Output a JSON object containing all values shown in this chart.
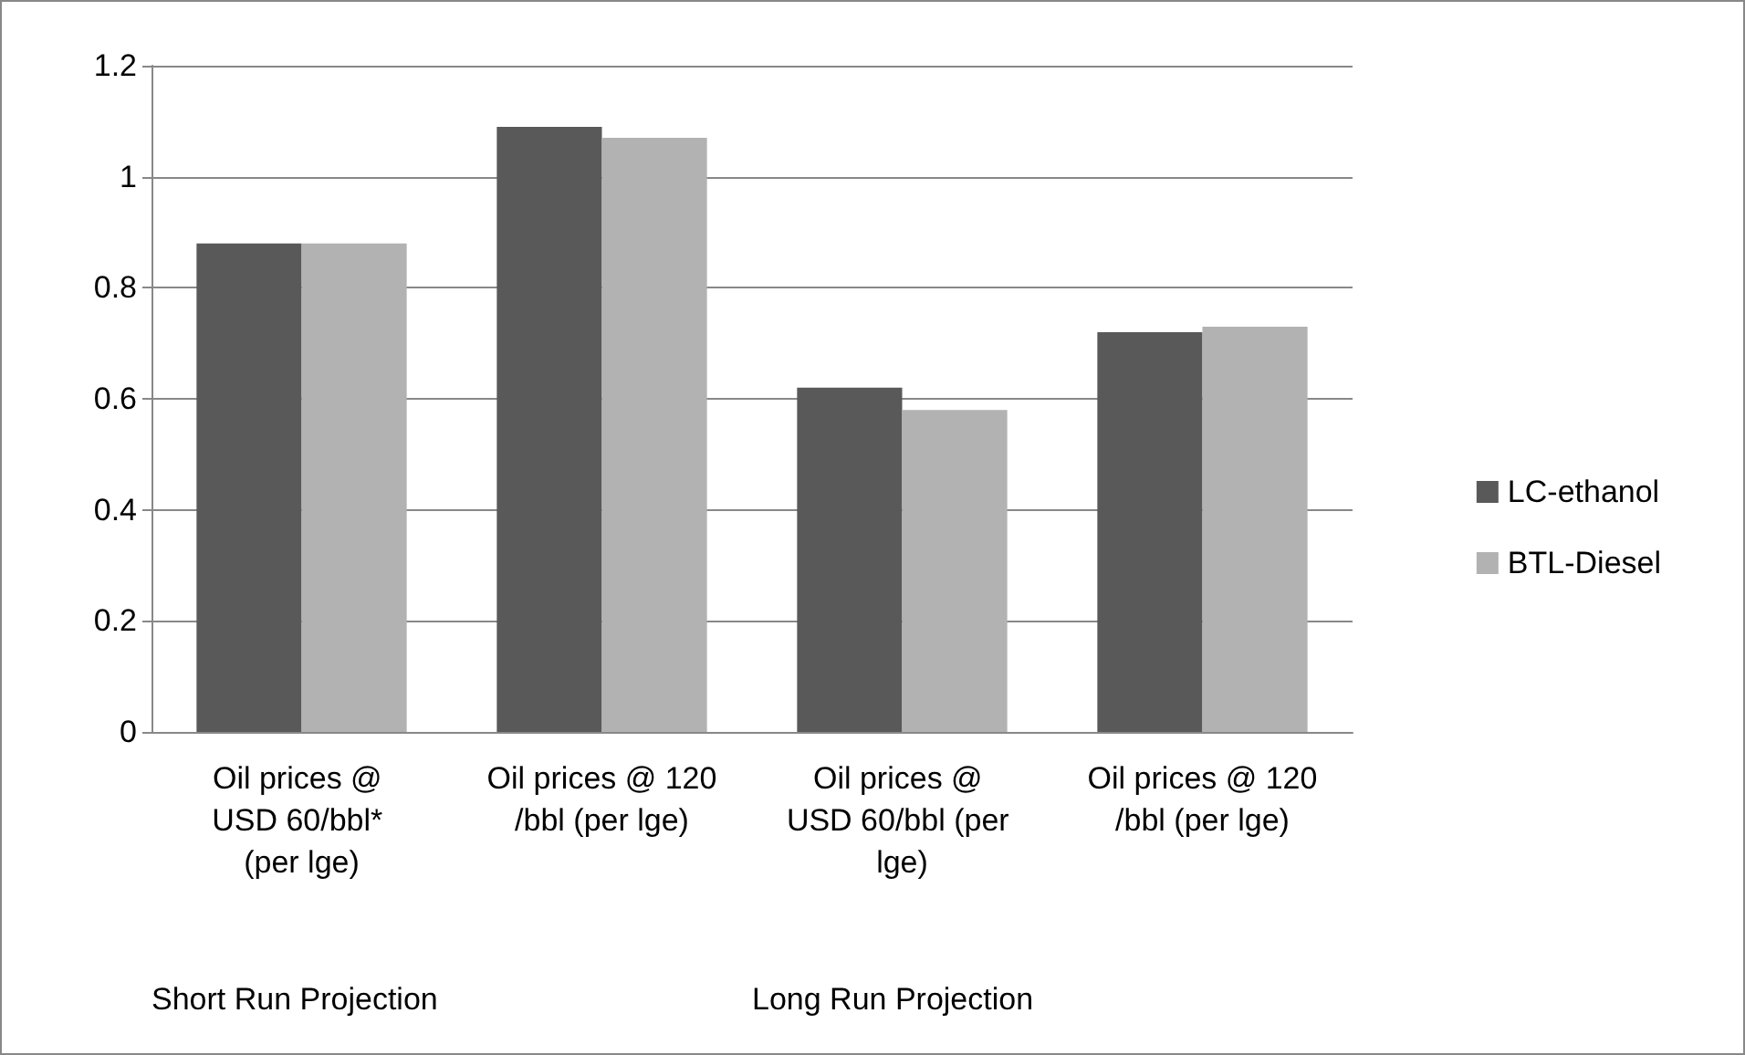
{
  "chart_data": {
    "type": "bar",
    "categories": [
      "Oil prices @ USD 60/bbl* (per lge)",
      "Oil prices @ 120/bbl (per lge)",
      "Oil prices @ USD 60/bbl (per lge)",
      "Oil prices @ 120/bbl (per lge)"
    ],
    "series": [
      {
        "name": "LC-ethanol",
        "color": "#595959",
        "values": [
          0.88,
          1.09,
          0.62,
          0.72
        ]
      },
      {
        "name": "BTL-Diesel",
        "color": "#b2b2b2",
        "values": [
          0.88,
          1.07,
          0.58,
          0.73
        ]
      }
    ],
    "annotations": [
      "Short Run Projection",
      "Long Run Projection"
    ],
    "ylim": [
      0,
      1.2
    ],
    "yticks": [
      0,
      0.2,
      0.4,
      0.6,
      0.8,
      1,
      1.2
    ],
    "grid": "y",
    "legend": "right"
  }
}
